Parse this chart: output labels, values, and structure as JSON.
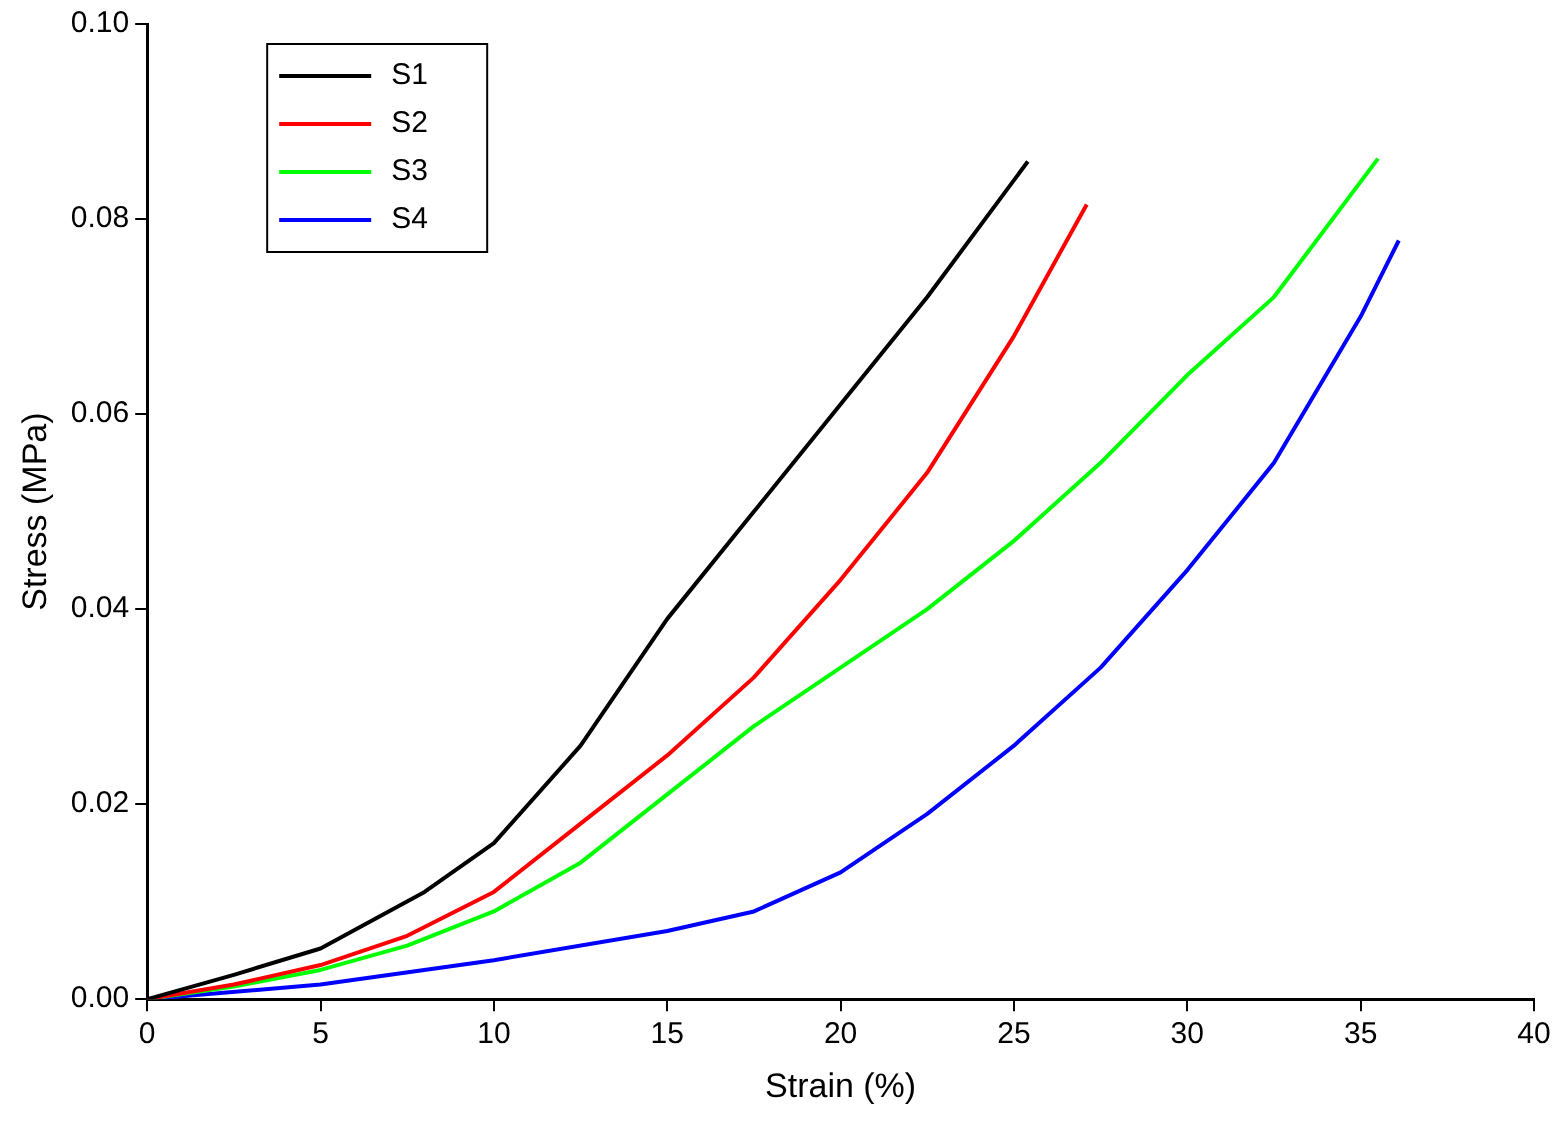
{
  "chart_data": {
    "type": "line",
    "xlabel": "Strain (%)",
    "ylabel": "Stress (MPa)",
    "xlim": [
      0,
      40
    ],
    "ylim": [
      0,
      0.1
    ],
    "xticks": [
      0,
      5,
      10,
      15,
      20,
      25,
      30,
      35,
      40
    ],
    "yticks": [
      {
        "value": 0,
        "label": "0.00"
      },
      {
        "value": 0.02,
        "label": "0.02"
      },
      {
        "value": 0.04,
        "label": "0.04"
      },
      {
        "value": 0.06,
        "label": "0.06"
      },
      {
        "value": 0.08,
        "label": "0.08"
      },
      {
        "value": 0.1,
        "label": "0.10"
      }
    ],
    "legend": "top left",
    "grid": false,
    "marker": "none",
    "line_style": "solid",
    "series": [
      {
        "name": "S1",
        "color": "#000000",
        "x": [
          0,
          2.5,
          5,
          8,
          10,
          12.5,
          15,
          17.5,
          20,
          22.5,
          25.4
        ],
        "values": [
          0,
          0.0025,
          0.0052,
          0.011,
          0.016,
          0.026,
          0.039,
          0.05,
          0.061,
          0.072,
          0.0859
        ]
      },
      {
        "name": "S2",
        "color": "#ff0000",
        "x": [
          0,
          2.5,
          5,
          7.5,
          10,
          12.5,
          15,
          17.5,
          20,
          22.5,
          25,
          27.1
        ],
        "values": [
          0,
          0.0015,
          0.0035,
          0.0065,
          0.011,
          0.018,
          0.025,
          0.033,
          0.043,
          0.054,
          0.068,
          0.0815
        ]
      },
      {
        "name": "S3",
        "color": "#00ff00",
        "x": [
          0,
          2.5,
          5,
          7.5,
          10,
          12.5,
          15,
          17.5,
          20,
          22.5,
          25,
          27.5,
          30,
          32.5,
          35.5
        ],
        "values": [
          0,
          0.0013,
          0.003,
          0.0055,
          0.009,
          0.014,
          0.021,
          0.028,
          0.034,
          0.04,
          0.047,
          0.055,
          0.064,
          0.072,
          0.0862
        ]
      },
      {
        "name": "S4",
        "color": "#0000ff",
        "x": [
          0,
          5,
          10,
          15,
          17.5,
          20,
          22.5,
          25,
          27.5,
          30,
          32.5,
          35,
          36.1
        ],
        "values": [
          0,
          0.0015,
          0.004,
          0.007,
          0.009,
          0.013,
          0.019,
          0.026,
          0.034,
          0.044,
          0.055,
          0.07,
          0.0778
        ]
      }
    ]
  }
}
